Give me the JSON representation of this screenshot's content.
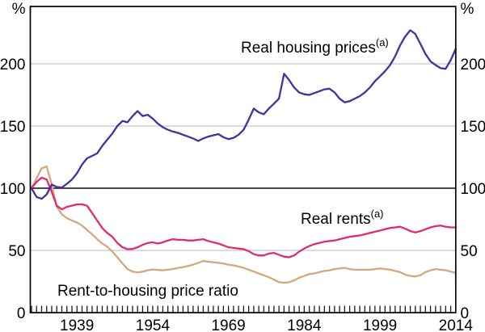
{
  "chart_data": {
    "type": "line",
    "title": "",
    "unit": "%",
    "x_start_year": 1930,
    "x_end_year": 2014,
    "x_tick_labels": [
      "1939",
      "1954",
      "1969",
      "1984",
      "1999",
      "2014"
    ],
    "x_tick_years": [
      1939,
      1954,
      1969,
      1984,
      1999,
      2014
    ],
    "y_ticks": [
      "0",
      "50",
      "100",
      "150",
      "200"
    ],
    "y_tick_values": [
      0,
      50,
      100,
      150,
      200
    ],
    "ylim": [
      0,
      246
    ],
    "baseline_value": 100,
    "grid_values": [
      50,
      150,
      200
    ],
    "grid_on": true,
    "legend_position": "inline-labels",
    "colors": {
      "axis": "#000000",
      "grid": "#c7c7c7",
      "baseline": "#2d2d2d",
      "tick": "#1a1a1a",
      "background": "#ffffff"
    },
    "series": [
      {
        "name": "real-housing-prices",
        "label": "Real housing prices",
        "marker": "(a)",
        "color": "#4a2d9e",
        "values": [
          100,
          93,
          91.5,
          95,
          103,
          101,
          100.5,
          103.5,
          107,
          112,
          119,
          124,
          126,
          128,
          134,
          139,
          144,
          150,
          154,
          153,
          158,
          162,
          158,
          159,
          156,
          152,
          149,
          147,
          145.5,
          144.5,
          143,
          141.5,
          140,
          138,
          140,
          141.5,
          142.5,
          143.5,
          141,
          139.5,
          140.5,
          143,
          147,
          155,
          164,
          161,
          159.5,
          164,
          168,
          172,
          192,
          187,
          181,
          177,
          175.5,
          175,
          176.5,
          178,
          179.5,
          180,
          177,
          172,
          169,
          170,
          172,
          174,
          177,
          181,
          186,
          190,
          194,
          199,
          206,
          215,
          222,
          227,
          224,
          216,
          208,
          202,
          199,
          196.5,
          196,
          203,
          212
        ]
      },
      {
        "name": "real-rents",
        "label": "Real rents",
        "marker": "(a)",
        "color": "#e32a6e",
        "values": [
          100,
          105,
          108.5,
          107,
          97,
          86,
          83,
          85,
          86,
          87,
          87,
          86,
          80,
          74,
          68,
          64,
          61,
          56,
          52.5,
          51,
          51.2,
          52.5,
          54.5,
          56,
          56.5,
          55.5,
          56.5,
          58,
          59,
          58.5,
          58.5,
          58,
          58,
          58.5,
          59,
          57.5,
          56.5,
          55.5,
          54,
          52.5,
          52,
          51.5,
          51,
          49.5,
          47,
          46,
          46,
          47.5,
          48,
          46.5,
          45,
          44.5,
          46,
          49,
          51.5,
          53.5,
          55,
          56,
          57,
          57.5,
          58,
          59,
          60,
          61,
          61.5,
          62,
          63,
          64,
          65,
          66,
          67,
          68,
          68.5,
          69,
          67.5,
          65.5,
          64.5,
          65.5,
          67,
          68.5,
          69.5,
          70,
          69,
          68.5,
          68.5
        ]
      },
      {
        "name": "rent-to-housing-price-ratio",
        "label": "Rent-to-housing price ratio",
        "marker": "",
        "color": "#d4a77f",
        "values": [
          100,
          108,
          116,
          117.5,
          103,
          85,
          79,
          76,
          74,
          72.5,
          70,
          66.5,
          63,
          59,
          55.5,
          53,
          49,
          44.5,
          39.5,
          35,
          33,
          32.3,
          33,
          34,
          34.7,
          34.3,
          34,
          34.5,
          35,
          36,
          36.5,
          37.5,
          38.5,
          40,
          41.5,
          41,
          40.5,
          40,
          39.5,
          38.5,
          38,
          37,
          36,
          34.5,
          33,
          31.5,
          30,
          28.5,
          26.5,
          24.5,
          24,
          24.5,
          26,
          28,
          29.5,
          31,
          31.5,
          32.5,
          33.5,
          34,
          35,
          35.5,
          36,
          35,
          34.5,
          34.5,
          34.5,
          34.5,
          35,
          35.5,
          35,
          34.5,
          33.5,
          32.5,
          30.5,
          29.5,
          29,
          30,
          32.5,
          34,
          35,
          34.5,
          34,
          33,
          32
        ]
      }
    ]
  }
}
